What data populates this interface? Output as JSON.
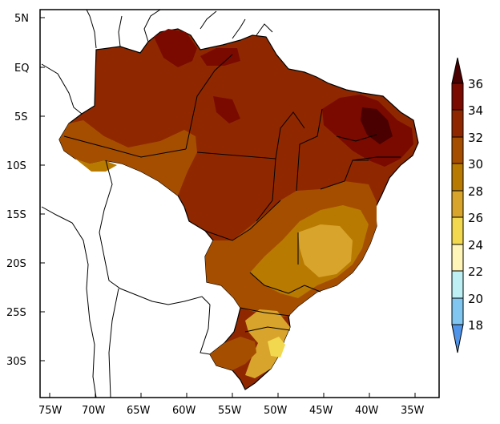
{
  "map": {
    "lat_ticks": [
      "5N",
      "EQ",
      "5S",
      "10S",
      "15S",
      "20S",
      "25S",
      "30S"
    ],
    "lon_ticks": [
      "75W",
      "70W",
      "65W",
      "60W",
      "55W",
      "50W",
      "45W",
      "40W",
      "35W"
    ],
    "colors": {
      "c36": "#4a0000",
      "c34": "#7a0a00",
      "c32": "#8f2800",
      "c30": "#a64e00",
      "c28": "#b87a00",
      "c26": "#d8a42c",
      "c24": "#f2d84e",
      "c22": "#fff5b8",
      "c20": "#bdeff5",
      "c18": "#80c6f0",
      "cBelow": "#4f94e8",
      "boundary": "#000000"
    }
  },
  "colorbar": {
    "labels": [
      "36",
      "34",
      "32",
      "30",
      "28",
      "26",
      "24",
      "22",
      "20",
      "18"
    ]
  }
}
